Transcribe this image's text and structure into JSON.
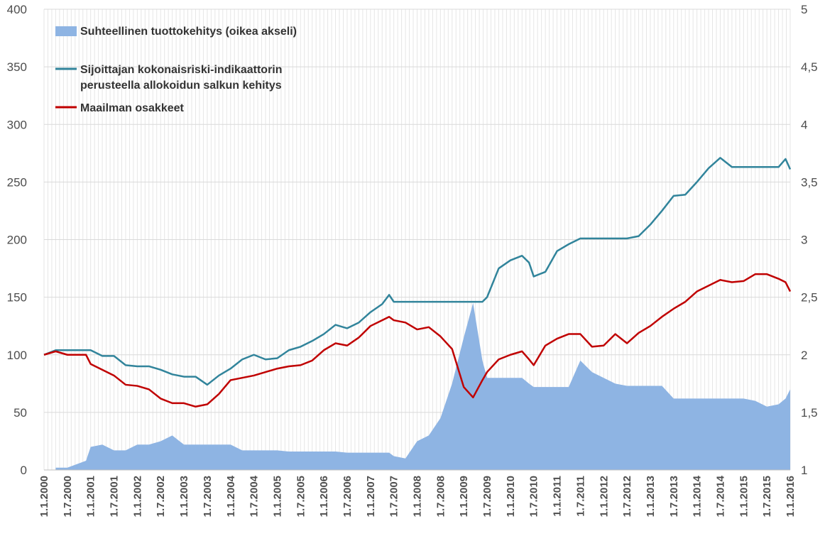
{
  "chart_data": {
    "type": "line",
    "title": "",
    "grid": true,
    "legend_position": "top-left",
    "left_axis": {
      "ylim": [
        0,
        400
      ],
      "ticks": [
        "0",
        "50",
        "100",
        "150",
        "200",
        "250",
        "300",
        "350",
        "400"
      ]
    },
    "right_axis": {
      "ylim": [
        1,
        5
      ],
      "ticks": [
        "1",
        "1,5",
        "2",
        "2,5",
        "3",
        "3,5",
        "4",
        "4,5",
        "5"
      ]
    },
    "x_tick_labels": [
      "1.1.2000",
      "1.7.2000",
      "1.1.2001",
      "1.7.2001",
      "1.1.2002",
      "1.7.2002",
      "1.1.2003",
      "1.7.2003",
      "1.1.2004",
      "1.7.2004",
      "1.1.2005",
      "1.7.2005",
      "1.1.2006",
      "1.7.2006",
      "1.1.2007",
      "1.7.2007",
      "1.1.2008",
      "1.7.2008",
      "1.1.2009",
      "1.7.2009",
      "1.1.2010",
      "1.7.2010",
      "1.1.2011",
      "1.7.2011",
      "1.1.2012",
      "1.7.2012",
      "1.1.2013",
      "1.7.2013",
      "1.1.2014",
      "1.7.2014",
      "1.1.2015",
      "1.7.2015",
      "1.1.2016"
    ],
    "x_years": [
      2000.0,
      2000.25,
      2000.5,
      2000.9,
      2001.0,
      2001.25,
      2001.5,
      2001.75,
      2002.0,
      2002.25,
      2002.5,
      2002.75,
      2003.0,
      2003.25,
      2003.5,
      2003.75,
      2004.0,
      2004.25,
      2004.5,
      2004.75,
      2005.0,
      2005.25,
      2005.5,
      2005.75,
      2006.0,
      2006.25,
      2006.5,
      2006.75,
      2007.0,
      2007.25,
      2007.4,
      2007.5,
      2007.75,
      2008.0,
      2008.25,
      2008.5,
      2008.75,
      2009.0,
      2009.2,
      2009.4,
      2009.5,
      2009.75,
      2010.0,
      2010.25,
      2010.4,
      2010.5,
      2010.75,
      2011.0,
      2011.25,
      2011.5,
      2011.75,
      2012.0,
      2012.25,
      2012.5,
      2012.75,
      2013.0,
      2013.25,
      2013.5,
      2013.75,
      2014.0,
      2014.25,
      2014.5,
      2014.75,
      2015.0,
      2015.25,
      2015.5,
      2015.75,
      2015.9,
      2016.0
    ],
    "series": [
      {
        "name": "Suhteellinen tuottokehitys (oikea akseli)",
        "axis": "right",
        "type": "area",
        "color": "#8eb4e3",
        "values": [
          null,
          1.02,
          1.02,
          1.08,
          1.2,
          1.22,
          1.17,
          1.17,
          1.22,
          1.22,
          1.25,
          1.3,
          1.22,
          1.22,
          1.22,
          1.22,
          1.22,
          1.17,
          1.17,
          1.17,
          1.17,
          1.16,
          1.16,
          1.16,
          1.16,
          1.16,
          1.15,
          1.15,
          1.15,
          1.15,
          1.15,
          1.12,
          1.1,
          1.25,
          1.3,
          1.45,
          1.75,
          2.15,
          2.45,
          1.95,
          1.8,
          1.8,
          1.8,
          1.8,
          1.75,
          1.72,
          1.72,
          1.72,
          1.72,
          1.95,
          1.85,
          1.8,
          1.75,
          1.73,
          1.73,
          1.73,
          1.73,
          1.62,
          1.62,
          1.62,
          1.62,
          1.62,
          1.62,
          1.62,
          1.6,
          1.55,
          1.57,
          1.62,
          1.7
        ]
      },
      {
        "name": "Sijoittajan kokonaisriski-indikaattorin perusteella allokoidun salkun kehitys",
        "axis": "left",
        "type": "line",
        "color": "#31849b",
        "values": [
          100,
          104,
          104,
          104,
          104,
          99,
          99,
          91,
          90,
          90,
          87,
          83,
          81,
          81,
          74,
          82,
          88,
          96,
          100,
          96,
          97,
          104,
          107,
          112,
          118,
          126,
          123,
          128,
          137,
          144,
          152,
          146,
          146,
          146,
          146,
          146,
          146,
          146,
          146,
          146,
          150,
          175,
          182,
          186,
          180,
          168,
          172,
          190,
          196,
          201,
          201,
          201,
          201,
          201,
          203,
          213,
          225,
          238,
          239,
          250,
          262,
          271,
          263,
          263,
          263,
          263,
          263,
          270,
          261
        ]
      },
      {
        "name": "Maailman osakkeet",
        "axis": "left",
        "type": "line",
        "color": "#c00000",
        "values": [
          100,
          103,
          100,
          100,
          92,
          87,
          82,
          74,
          73,
          70,
          62,
          58,
          58,
          55,
          57,
          66,
          78,
          80,
          82,
          85,
          88,
          90,
          91,
          95,
          104,
          110,
          108,
          115,
          125,
          130,
          133,
          130,
          128,
          122,
          124,
          116,
          105,
          72,
          63,
          78,
          85,
          96,
          100,
          103,
          96,
          91,
          108,
          114,
          118,
          118,
          107,
          108,
          118,
          110,
          119,
          125,
          133,
          140,
          146,
          155,
          160,
          165,
          163,
          164,
          170,
          170,
          166,
          163,
          155
        ]
      }
    ]
  },
  "legend": [
    {
      "lines": [
        "Suhteellinen tuottokehitys (oikea akseli)"
      ],
      "kind": "area",
      "color": "#8eb4e3"
    },
    {
      "lines": [
        "Sijoittajan kokonaisriski-indikaattorin",
        "perusteella allokoidun salkun kehitys"
      ],
      "kind": "line",
      "color": "#31849b"
    },
    {
      "lines": [
        "Maailman osakkeet"
      ],
      "kind": "line",
      "color": "#c00000"
    }
  ]
}
